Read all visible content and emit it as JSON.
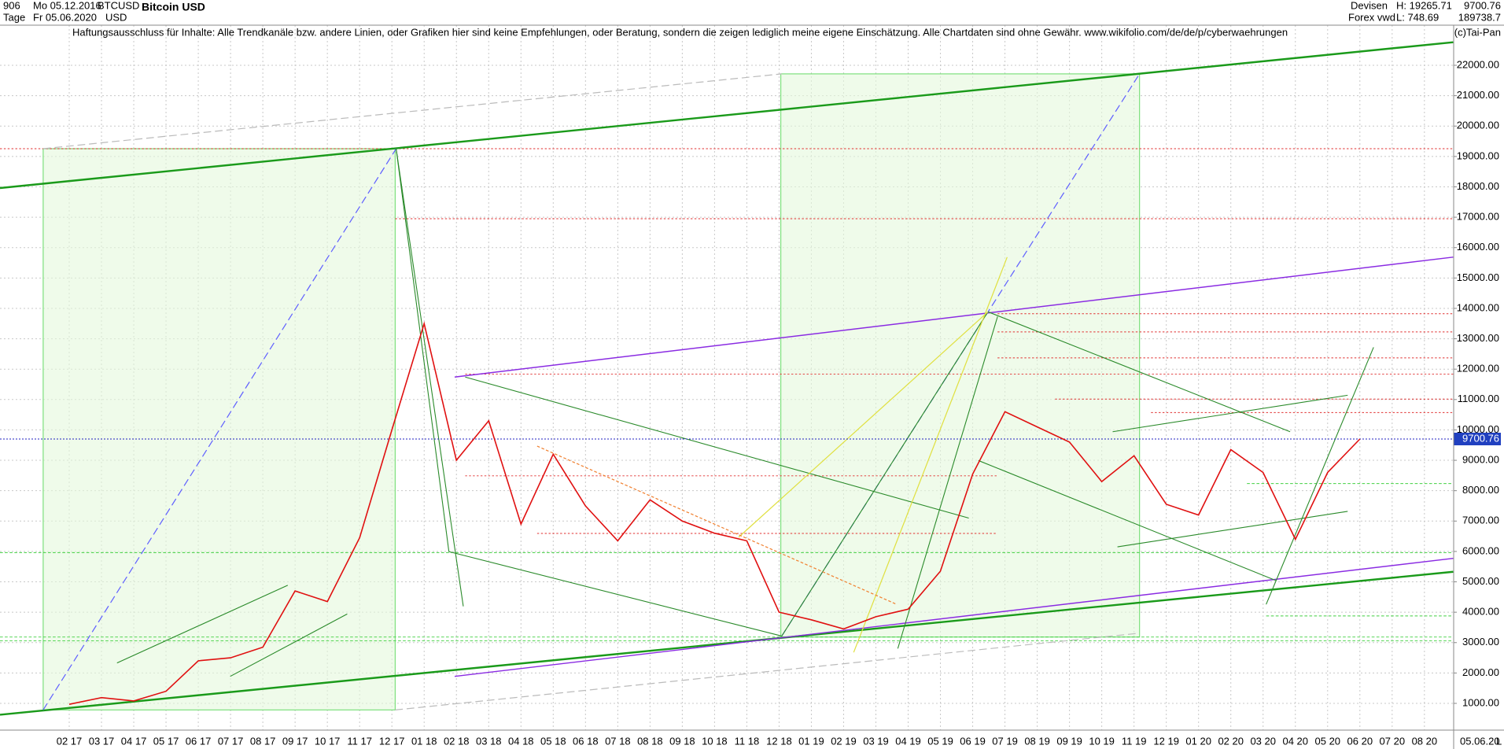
{
  "header": {
    "id": "906",
    "start_date": "Mo 05.12.2016",
    "symbol": "BTCUSD",
    "title": "Bitcoin USD",
    "period": "Tage",
    "end_date": "Fr 05.06.2020",
    "currency": "USD",
    "market": "Devisen",
    "source": "Forex vwd",
    "high": "H: 19265.71",
    "low": "L: 748.69",
    "last": "9700.76",
    "volume": "189738.7",
    "copyright": "(c)Tai-Pan",
    "disclaimer": "Haftungsausschluss für Inhalte: Alle Trendkanäle bzw. andere Linien, oder Grafiken hier sind keine Empfehlungen, oder Beratung, sondern die zeigen lediglich meine eigene Einschätzung. Alle Chartdaten sind ohne Gewähr.  www.wikifolio.com/de/de/p/cyberwaehrungen",
    "date_label": "05.06.20",
    "scale_label": "L"
  },
  "chart_data": {
    "type": "line",
    "categories": [
      "02 17",
      "03 17",
      "04 17",
      "05 17",
      "06 17",
      "07 17",
      "08 17",
      "09 17",
      "10 17",
      "11 17",
      "12 17",
      "01 18",
      "02 18",
      "03 18",
      "04 18",
      "05 18",
      "06 18",
      "07 18",
      "08 18",
      "09 18",
      "10 18",
      "11 18",
      "12 18",
      "01 19",
      "02 19",
      "03 19",
      "04 19",
      "05 19",
      "06 19",
      "07 19",
      "08 19",
      "09 19",
      "10 19",
      "11 19",
      "12 19",
      "01 20",
      "02 20",
      "03 20",
      "04 20",
      "05 20",
      "06 20",
      "07 20",
      "08 20"
    ],
    "series": [
      {
        "name": "Bitcoin USD",
        "color": "#e01010",
        "values": [
          970,
          1190,
          1080,
          1400,
          2400,
          2500,
          2850,
          4700,
          4350,
          6450,
          10000,
          13500,
          9000,
          10300,
          6900,
          9200,
          7500,
          6350,
          7700,
          7000,
          6600,
          6350,
          4000,
          3750,
          3450,
          3850,
          4100,
          5350,
          8550,
          10600,
          10100,
          9600,
          8300,
          9150,
          7550,
          7200,
          9350,
          8600,
          6400,
          8600,
          9700.76,
          null,
          null
        ]
      }
    ],
    "last_price": 9700.76,
    "ylim": [
      0,
      23000
    ],
    "yticks": [
      {
        "value": 1000,
        "label": "1000.00"
      },
      {
        "value": 2000,
        "label": "2000.00"
      },
      {
        "value": 3000,
        "label": "3000.00"
      },
      {
        "value": 4000,
        "label": "4000.00"
      },
      {
        "value": 5000,
        "label": "5000.00"
      },
      {
        "value": 6000,
        "label": "6000.00"
      },
      {
        "value": 7000,
        "label": "7000.00"
      },
      {
        "value": 8000,
        "label": "8000.00"
      },
      {
        "value": 9000,
        "label": "9000.00"
      },
      {
        "value": 10000,
        "label": "10000.00"
      },
      {
        "value": 11000,
        "label": "11000.00"
      },
      {
        "value": 12000,
        "label": "12000.00"
      },
      {
        "value": 13000,
        "label": "13000.00"
      },
      {
        "value": 14000,
        "label": "14000.00"
      },
      {
        "value": 15000,
        "label": "15000.00"
      },
      {
        "value": 16000,
        "label": "16000.00"
      },
      {
        "value": 17000,
        "label": "17000.00"
      },
      {
        "value": 18000,
        "label": "18000.00"
      },
      {
        "value": 19000,
        "label": "19000.00"
      },
      {
        "value": 20000,
        "label": "20000.00"
      },
      {
        "value": 21000,
        "label": "21000.00"
      },
      {
        "value": 22000,
        "label": "22000.00"
      }
    ],
    "grid": true
  }
}
